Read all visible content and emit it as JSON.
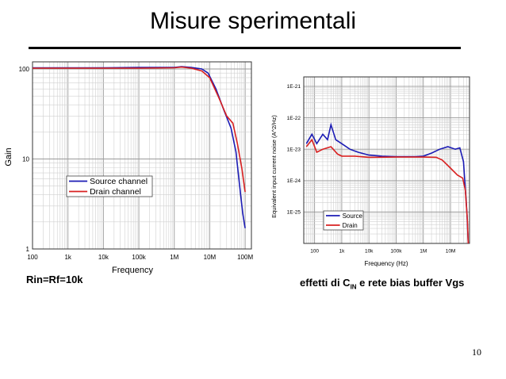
{
  "slide": {
    "title": "Misure sperimentali",
    "caption_left": "Rin=Rf=10k",
    "caption_right_prefix": "effetti di C",
    "caption_right_sub": "IN",
    "caption_right_suffix": " e rete bias buffer Vgs",
    "page_number": "10"
  },
  "chart_data": [
    {
      "type": "line",
      "xlabel": "Frequency",
      "ylabel": "Gain",
      "x_scale": "log",
      "y_scale": "log",
      "xlim": [
        100,
        150000000
      ],
      "ylim": [
        1,
        120
      ],
      "x_ticks": [
        {
          "v": 100,
          "label": "100"
        },
        {
          "v": 1000,
          "label": "1k"
        },
        {
          "v": 10000,
          "label": "10k"
        },
        {
          "v": 100000,
          "label": "100k"
        },
        {
          "v": 1000000,
          "label": "1M"
        },
        {
          "v": 10000000,
          "label": "10M"
        },
        {
          "v": 100000000,
          "label": "100M"
        }
      ],
      "y_ticks": [
        {
          "v": 1,
          "label": "1"
        },
        {
          "v": 10,
          "label": "10"
        },
        {
          "v": 100,
          "label": "100"
        }
      ],
      "grid": true,
      "legend_position": "bottom-left",
      "series": [
        {
          "name": "Source channel",
          "color": "#1b1bb4",
          "points": [
            [
              100,
              103
            ],
            [
              1000,
              103
            ],
            [
              10000,
              103
            ],
            [
              100000,
              104
            ],
            [
              1000000,
              104
            ],
            [
              1600000,
              106
            ],
            [
              3000000,
              104
            ],
            [
              6000000,
              100
            ],
            [
              9000000,
              90
            ],
            [
              15000000,
              60
            ],
            [
              25000000,
              35
            ],
            [
              40000000,
              22
            ],
            [
              55000000,
              12
            ],
            [
              70000000,
              5
            ],
            [
              85000000,
              2.5
            ],
            [
              100000000,
              1.7
            ]
          ]
        },
        {
          "name": "Drain channel",
          "color": "#d82020",
          "points": [
            [
              100,
              102
            ],
            [
              1000,
              102
            ],
            [
              10000,
              102
            ],
            [
              100000,
              102
            ],
            [
              1000000,
              103
            ],
            [
              1600000,
              105
            ],
            [
              3000000,
              102
            ],
            [
              6000000,
              95
            ],
            [
              10000000,
              80
            ],
            [
              18000000,
              48
            ],
            [
              30000000,
              30
            ],
            [
              45000000,
              25
            ],
            [
              60000000,
              15
            ],
            [
              80000000,
              8
            ],
            [
              100000000,
              4.3
            ]
          ]
        }
      ]
    },
    {
      "type": "line",
      "xlabel": "Frequency (Hz)",
      "ylabel": "Equivalent input current noise (A^2/Hz)",
      "x_scale": "log",
      "y_scale": "log",
      "xlim": [
        40,
        50000000
      ],
      "ylim": [
        1e-26,
        2e-21
      ],
      "x_ticks": [
        {
          "v": 100,
          "label": "100"
        },
        {
          "v": 1000,
          "label": "1k"
        },
        {
          "v": 10000,
          "label": "10k"
        },
        {
          "v": 100000,
          "label": "100k"
        },
        {
          "v": 1000000,
          "label": "1M"
        },
        {
          "v": 10000000,
          "label": "10M"
        }
      ],
      "y_ticks": [
        {
          "v": 1e-25,
          "label": "1E-25"
        },
        {
          "v": 1e-24,
          "label": "1E-24"
        },
        {
          "v": 1e-23,
          "label": "1E-23"
        },
        {
          "v": 1e-22,
          "label": "1E-22"
        },
        {
          "v": 1e-21,
          "label": "1E-21"
        }
      ],
      "grid": true,
      "legend_position": "bottom-left",
      "series": [
        {
          "name": "Source",
          "color": "#1b1bb4",
          "points": [
            [
              50,
              1.5e-23
            ],
            [
              80,
              3e-23
            ],
            [
              120,
              1.5e-23
            ],
            [
              200,
              3e-23
            ],
            [
              300,
              2e-23
            ],
            [
              400,
              6e-23
            ],
            [
              600,
              2e-23
            ],
            [
              1000,
              1.5e-23
            ],
            [
              2000,
              1e-23
            ],
            [
              4000,
              8e-24
            ],
            [
              10000,
              6.5e-24
            ],
            [
              30000,
              6e-24
            ],
            [
              100000,
              5.8e-24
            ],
            [
              500000,
              5.8e-24
            ],
            [
              1000000,
              6e-24
            ],
            [
              2000000,
              7.5e-24
            ],
            [
              4000000,
              1e-23
            ],
            [
              8000000,
              1.2e-23
            ],
            [
              15000000,
              1e-23
            ],
            [
              22000000,
              1.1e-23
            ],
            [
              30000000,
              4e-24
            ],
            [
              40000000,
              1e-25
            ],
            [
              45000000,
              1e-26
            ]
          ]
        },
        {
          "name": "Drain",
          "color": "#d82020",
          "points": [
            [
              50,
              1.2e-23
            ],
            [
              80,
              2e-23
            ],
            [
              120,
              8e-24
            ],
            [
              200,
              1e-23
            ],
            [
              400,
              1.2e-23
            ],
            [
              700,
              7e-24
            ],
            [
              1000,
              6e-24
            ],
            [
              3000,
              6e-24
            ],
            [
              10000,
              5.5e-24
            ],
            [
              100000,
              5.6e-24
            ],
            [
              1000000,
              5.6e-24
            ],
            [
              3000000,
              5.5e-24
            ],
            [
              5000000,
              4.5e-24
            ],
            [
              10000000,
              2.5e-24
            ],
            [
              18000000,
              1.5e-24
            ],
            [
              28000000,
              1.2e-24
            ],
            [
              35000000,
              5e-25
            ],
            [
              42000000,
              5e-26
            ],
            [
              45000000,
              1e-26
            ]
          ]
        }
      ]
    }
  ]
}
